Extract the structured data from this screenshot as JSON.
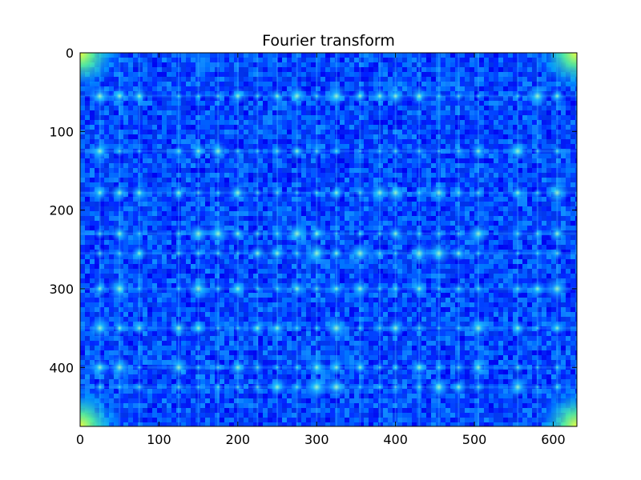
{
  "chart_data": {
    "type": "heatmap",
    "title": "Fourier transform",
    "xlabel": "",
    "ylabel": "",
    "xlim": [
      0,
      630
    ],
    "ylim": [
      475,
      0
    ],
    "x_ticks": [
      0,
      100,
      200,
      300,
      400,
      500,
      600
    ],
    "y_ticks": [
      0,
      100,
      200,
      300,
      400
    ],
    "grid": false,
    "colormap": "jet",
    "colors": {
      "low": "#0000ff",
      "mid_low": "#0050ff",
      "mid": "#00c8ff",
      "high": "#80ff80",
      "peak": "#ffff00"
    },
    "peak_rows": [
      55,
      125,
      178,
      230,
      255,
      300,
      350,
      400,
      425
    ],
    "peak_columns": [
      25,
      50,
      75,
      125,
      150,
      175,
      200,
      225,
      250,
      275,
      300,
      325,
      355,
      380,
      400,
      430,
      455,
      480,
      505,
      555,
      580,
      605
    ]
  }
}
